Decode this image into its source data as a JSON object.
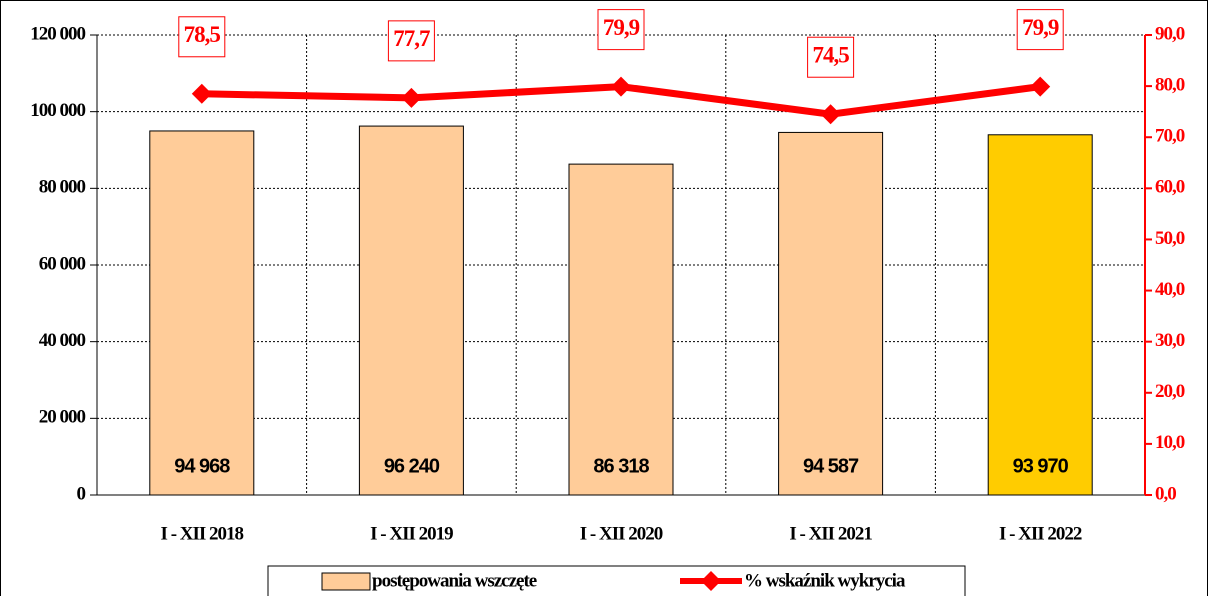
{
  "chart_data": {
    "type": "bar",
    "categories": [
      "I - XII 2018",
      "I - XII 2019",
      "I - XII 2020",
      "I - XII 2021",
      "I - XII 2022"
    ],
    "series": [
      {
        "name": "postępowania wszczęte",
        "type": "bar",
        "color": "#ffcc99",
        "colors": [
          "#ffcc99",
          "#ffcc99",
          "#ffcc99",
          "#ffcc99",
          "#ffcc00"
        ],
        "values": [
          94968,
          96240,
          86318,
          94587,
          93970
        ],
        "value_labels": [
          "94 968",
          "96 240",
          "86 318",
          "94 587",
          "93 970"
        ]
      },
      {
        "name": "% wskaźnik wykrycia",
        "type": "line",
        "axis": "y2",
        "color": "#ff0000",
        "values": [
          78.5,
          77.7,
          79.9,
          74.5,
          79.9
        ],
        "value_labels": [
          "78,5",
          "77,7",
          "79,9",
          "74,5",
          "79,9"
        ]
      }
    ],
    "ylim": [
      0,
      120000
    ],
    "yticks": [
      0,
      {
        "value": 20000,
        "label": "20 000"
      },
      {
        "value": 40000,
        "label": "40 000"
      },
      {
        "value": 60000,
        "label": "60 000"
      },
      {
        "value": 80000,
        "label": "80 000"
      },
      {
        "value": 100000,
        "label": "100 000"
      },
      {
        "value": 120000,
        "label": "120 000"
      }
    ],
    "y2lim": [
      0,
      90
    ],
    "y2ticks": [
      {
        "value": 0,
        "label": "0,0"
      },
      {
        "value": 10,
        "label": "10,0"
      },
      {
        "value": 20,
        "label": "20,0"
      },
      {
        "value": 30,
        "label": "30,0"
      },
      {
        "value": 40,
        "label": "40,0"
      },
      {
        "value": 50,
        "label": "50,0"
      },
      {
        "value": 60,
        "label": "60,0"
      },
      {
        "value": 70,
        "label": "70,0"
      },
      {
        "value": 80,
        "label": "80,0"
      },
      {
        "value": 90,
        "label": "90,0"
      }
    ],
    "grid": true,
    "legend": "bottom"
  }
}
